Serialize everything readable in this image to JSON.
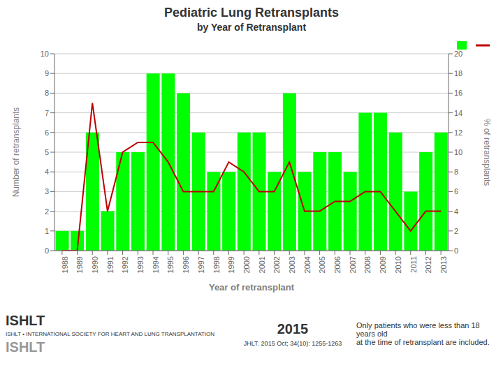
{
  "chart_data": {
    "type": "bar",
    "title": "Pediatric Lung Retransplants",
    "subtitle": "by Year of Retransplant",
    "xlabel": "Year of retransplant",
    "ylabel": "Number of retransplants",
    "y2label": "% of retransplants",
    "categories": [
      "1988",
      "1989",
      "1990",
      "1991",
      "1992",
      "1993",
      "1994",
      "1995",
      "1996",
      "1997",
      "1998",
      "1999",
      "2000",
      "2001",
      "2002",
      "2003",
      "2004",
      "2005",
      "2006",
      "2007",
      "2008",
      "2009",
      "2010",
      "2011",
      "2012",
      "2013"
    ],
    "series": [
      {
        "type": "bar",
        "color": "#00ff00",
        "values": [
          1,
          1,
          6,
          2,
          5,
          5,
          9,
          9,
          8,
          6,
          4,
          4,
          6,
          6,
          4,
          8,
          4,
          5,
          5,
          4,
          7,
          7,
          6,
          3,
          5,
          6
        ]
      },
      {
        "type": "line",
        "color": "#bb0000",
        "values": [
          0,
          0,
          7.5,
          2,
          5,
          5.5,
          5.5,
          4.5,
          3,
          3,
          3,
          4.5,
          4,
          3,
          3,
          4.5,
          2,
          2,
          2.5,
          2.5,
          3,
          3,
          2,
          1,
          2,
          2
        ]
      }
    ],
    "ylim": [
      0,
      10
    ],
    "yticks": [
      0,
      1,
      2,
      3,
      4,
      5,
      6,
      7,
      8,
      9,
      10
    ],
    "y2lim": [
      0,
      20
    ],
    "y2ticks": [
      0,
      2,
      4,
      6,
      8,
      10,
      12,
      14,
      16,
      18,
      20
    ],
    "grid": true,
    "legend": "upper right",
    "annotations": [
      "ISHLT",
      "ISHLT • INTERNATIONAL SOCIETY FOR HEART AND LUNG TRANSPLANTATION",
      "ISHLT",
      "2015",
      "JHLT. 2015 Oct; 34(10): 1255-1263",
      "Only patients who were less than 18 years old\nat the time of retransplant are included."
    ]
  }
}
